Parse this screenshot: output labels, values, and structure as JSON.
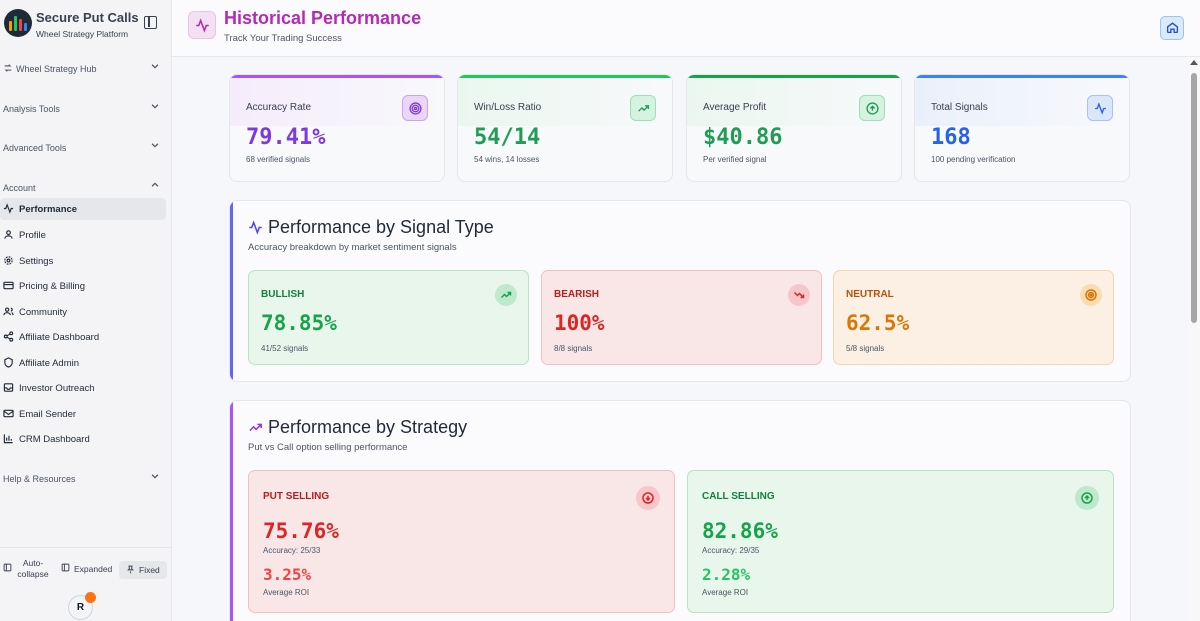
{
  "app": {
    "title": "Secure Put Calls",
    "subtitle": "Wheel Strategy Platform"
  },
  "sidebar": {
    "sections": [
      {
        "label": "Wheel Strategy Hub",
        "icon": "refresh-icon"
      },
      {
        "label": "Analysis Tools"
      },
      {
        "label": "Advanced Tools"
      },
      {
        "label": "Account"
      },
      {
        "label": "Help & Resources"
      }
    ],
    "items": [
      {
        "label": "Performance",
        "icon": "activity-icon"
      },
      {
        "label": "Profile",
        "icon": "user-icon"
      },
      {
        "label": "Settings",
        "icon": "gear-icon"
      },
      {
        "label": "Pricing & Billing",
        "icon": "credit-card-icon"
      },
      {
        "label": "Community",
        "icon": "users-icon"
      },
      {
        "label": "Affiliate Dashboard",
        "icon": "share-icon"
      },
      {
        "label": "Affiliate Admin",
        "icon": "shield-icon"
      },
      {
        "label": "Investor Outreach",
        "icon": "inbox-icon"
      },
      {
        "label": "Email Sender",
        "icon": "mail-icon"
      },
      {
        "label": "CRM Dashboard",
        "icon": "bar-chart-icon"
      }
    ],
    "footer": {
      "auto_collapse": "Auto-collapse",
      "expanded": "Expanded",
      "fixed": "Fixed",
      "avatar": "R"
    }
  },
  "header": {
    "title": "Historical Performance",
    "subtitle": "Track Your Trading Success"
  },
  "stats": [
    {
      "title": "Accuracy Rate",
      "value": "79.41%",
      "desc": "68 verified signals",
      "color": "#7e3ae0",
      "icon": "target-icon"
    },
    {
      "title": "Win/Loss Ratio",
      "value": "54/14",
      "desc": "54 wins, 14 losses",
      "color": "#1f9d55",
      "icon": "trending-up-icon"
    },
    {
      "title": "Average Profit",
      "value": "$40.86",
      "desc": "Per verified signal",
      "color": "#1f9d55",
      "icon": "arrow-up-circle-icon"
    },
    {
      "title": "Total Signals",
      "value": "168",
      "desc": "100 pending verification",
      "color": "#2563eb",
      "icon": "activity-icon"
    }
  ],
  "signal_panel": {
    "title": "Performance by Signal Type",
    "subtitle": "Accuracy breakdown by market sentiment signals",
    "cards": [
      {
        "name": "BULLISH",
        "value": "78.85%",
        "count": "41/52 signals",
        "color": "#16a34a",
        "icon": "trending-up-icon"
      },
      {
        "name": "BEARISH",
        "value": "100%",
        "count": "8/8 signals",
        "color": "#dc2626",
        "icon": "trending-down-icon"
      },
      {
        "name": "NEUTRAL",
        "value": "62.5%",
        "count": "5/8 signals",
        "color": "#d97706",
        "icon": "target-icon"
      }
    ]
  },
  "strategy_panel": {
    "title": "Performance by Strategy",
    "subtitle": "Put vs Call option selling performance",
    "cards": [
      {
        "name": "PUT SELLING",
        "accuracy": "75.76%",
        "accuracy_detail": "Accuracy: 25/33",
        "roi": "3.25%",
        "roi_label": "Average ROI",
        "color": "#dc2626",
        "icon": "arrow-down-circle-icon"
      },
      {
        "name": "CALL SELLING",
        "accuracy": "82.86%",
        "accuracy_detail": "Accuracy: 29/35",
        "roi": "2.28%",
        "roi_label": "Average ROI",
        "color": "#16a34a",
        "icon": "arrow-up-circle-icon"
      }
    ]
  }
}
